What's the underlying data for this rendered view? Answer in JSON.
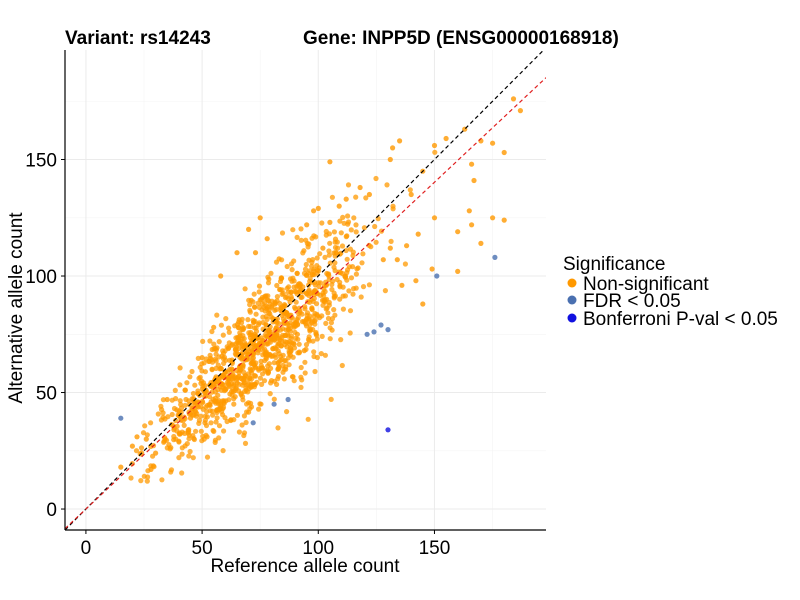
{
  "colors": {
    "non_significant": "#ff9900",
    "fdr": "#4a70b0",
    "bonferroni": "#1010e0",
    "identity_line": "#000000",
    "regression_line": "#e02020",
    "axis": "#000000"
  },
  "chart_data": {
    "type": "scatter",
    "title_left": "Variant: rs14243",
    "title_right": "Gene: INPP5D (ENSG00000168918)",
    "xlabel": "Reference allele count",
    "ylabel": "Alternative allele count",
    "xlim": [
      -9,
      198
    ],
    "ylim": [
      -9,
      197
    ],
    "xticks": [
      0,
      50,
      100,
      150
    ],
    "yticks": [
      0,
      50,
      100,
      150
    ],
    "legend": {
      "title": "Significance",
      "position": "right",
      "entries": [
        {
          "key": "non_significant",
          "label": "Non-significant"
        },
        {
          "key": "fdr",
          "label": "FDR < 0.05"
        },
        {
          "key": "bonferroni",
          "label": "Bonferroni P-val < 0.05"
        }
      ]
    },
    "lines": [
      {
        "name": "identity",
        "slope": 1,
        "intercept": 0,
        "color_key": "identity_line"
      },
      {
        "name": "fit",
        "slope": 0.935,
        "intercept": 0,
        "color_key": "regression_line"
      }
    ],
    "series": [
      {
        "name": "FDR < 0.05",
        "color_key": "fdr",
        "points": [
          [
            15,
            39
          ],
          [
            72,
            37
          ],
          [
            81,
            45
          ],
          [
            87,
            47
          ],
          [
            121,
            75
          ],
          [
            124,
            76
          ],
          [
            127,
            79
          ],
          [
            130,
            77
          ],
          [
            151,
            100
          ],
          [
            176,
            108
          ]
        ]
      },
      {
        "name": "Bonferroni P-val < 0.05",
        "color_key": "bonferroni",
        "points": [
          [
            130,
            34
          ]
        ]
      },
      {
        "name": "Non-significant",
        "color_key": "non_significant",
        "generated_count": 1150,
        "points": [
          [
            15,
            18
          ],
          [
            20,
            27
          ],
          [
            22,
            31
          ],
          [
            26,
            30
          ],
          [
            28,
            17
          ],
          [
            30,
            24
          ],
          [
            105,
            149
          ],
          [
            132,
            155
          ],
          [
            135,
            158
          ],
          [
            131,
            150
          ],
          [
            140,
            135
          ],
          [
            145,
            145
          ],
          [
            150,
            156
          ],
          [
            155,
            159
          ],
          [
            163,
            163
          ],
          [
            166,
            148
          ],
          [
            167,
            141
          ],
          [
            170,
            158
          ],
          [
            175,
            157
          ],
          [
            180,
            153
          ],
          [
            184,
            176
          ],
          [
            187,
            171
          ],
          [
            160,
            119
          ],
          [
            166,
            122
          ],
          [
            170,
            114
          ],
          [
            175,
            125
          ],
          [
            180,
            124
          ],
          [
            165,
            128
          ],
          [
            150,
            125
          ],
          [
            143,
            118
          ],
          [
            138,
            113
          ],
          [
            136,
            96
          ],
          [
            142,
            98
          ],
          [
            145,
            88
          ],
          [
            131,
            112
          ],
          [
            128,
            107
          ],
          [
            134,
            107
          ],
          [
            149,
            103
          ],
          [
            160,
            102
          ],
          [
            95,
            122
          ],
          [
            98,
            128
          ],
          [
            100,
            129
          ],
          [
            105,
            123
          ],
          [
            112,
            133
          ],
          [
            118,
            138
          ],
          [
            122,
            135
          ],
          [
            109,
            130
          ],
          [
            102,
            112
          ],
          [
            91,
            75
          ],
          [
            94,
            68
          ],
          [
            88,
            66
          ],
          [
            70,
            120
          ],
          [
            73,
            110
          ],
          [
            78,
            116
          ],
          [
            75,
            125
          ],
          [
            65,
            110
          ],
          [
            58,
            100
          ],
          [
            40,
            40
          ],
          [
            45,
            39
          ],
          [
            35,
            47
          ],
          [
            50,
            65
          ],
          [
            55,
            78
          ]
        ]
      }
    ]
  }
}
